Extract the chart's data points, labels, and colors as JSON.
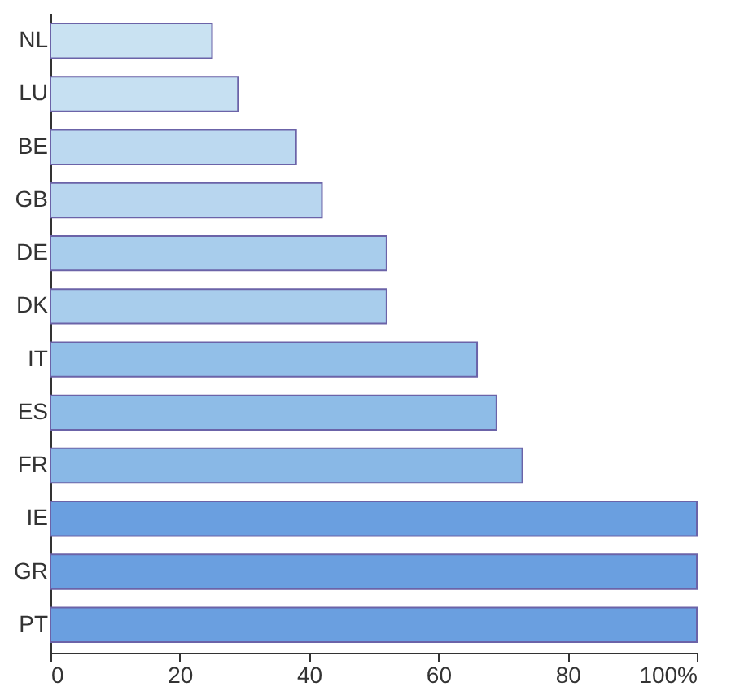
{
  "chart_data": {
    "type": "bar",
    "orientation": "horizontal",
    "categories": [
      "NL",
      "LU",
      "BE",
      "GB",
      "DE",
      "DK",
      "IT",
      "ES",
      "FR",
      "IE",
      "GR",
      "PT"
    ],
    "values": [
      25,
      29,
      38,
      42,
      52,
      52,
      66,
      69,
      73,
      100,
      100,
      100
    ],
    "colors": [
      "#c9e2f2",
      "#c6e0f2",
      "#bcd9f0",
      "#b8d6ef",
      "#a8cdec",
      "#a8cdec",
      "#92bfe8",
      "#8ebce7",
      "#89b8e6",
      "#6a9fe0",
      "#6a9fe0",
      "#6a9fe0"
    ],
    "xlim": [
      0,
      100
    ],
    "xticks": [
      0,
      20,
      40,
      60,
      80,
      {
        "value": 100,
        "label": "100%"
      }
    ],
    "grid": false
  }
}
